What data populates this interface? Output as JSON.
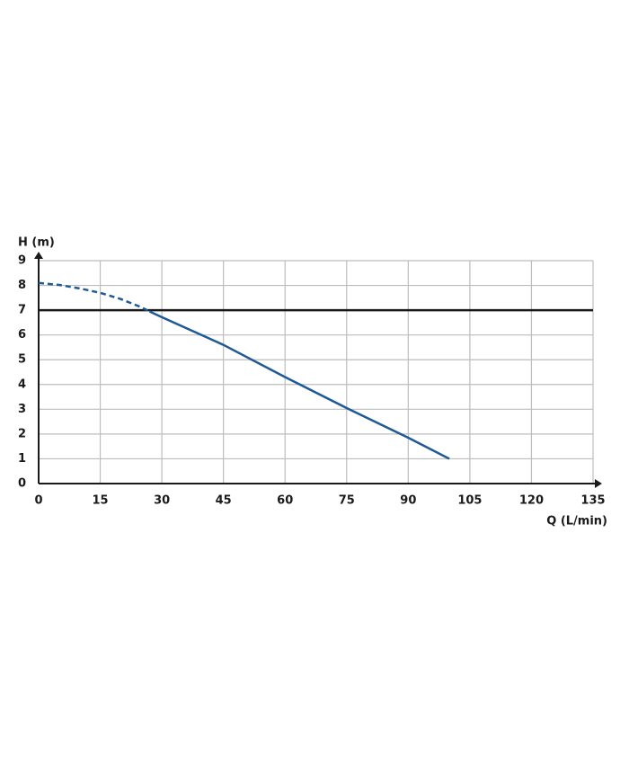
{
  "chart_data": {
    "type": "line",
    "y_label": "H (m)",
    "x_label": "Q (L/min)",
    "x": [
      0,
      5,
      10,
      15,
      20,
      25,
      27,
      30,
      45,
      60,
      75,
      90,
      100
    ],
    "series": [
      {
        "color": "#1f5a96",
        "style": "dashed",
        "values": [
          8.1,
          8.02,
          7.88,
          7.7,
          7.45,
          7.12,
          6.95,
          null,
          null,
          null,
          null,
          null,
          null
        ]
      },
      {
        "color": "#1f5a96",
        "style": "solid",
        "values": [
          null,
          null,
          null,
          null,
          null,
          null,
          6.95,
          6.72,
          5.6,
          4.3,
          3.05,
          1.85,
          1.0
        ]
      }
    ],
    "hlines": [
      {
        "value": 7,
        "color": "#1a1a1a"
      }
    ],
    "xlim": [
      0,
      135
    ],
    "xticks": [
      0,
      15,
      30,
      45,
      60,
      75,
      90,
      105,
      120,
      135
    ],
    "ylim": [
      0,
      9
    ],
    "yticks": [
      0,
      1,
      2,
      3,
      4,
      5,
      6,
      7,
      8,
      9
    ],
    "grid": true
  }
}
